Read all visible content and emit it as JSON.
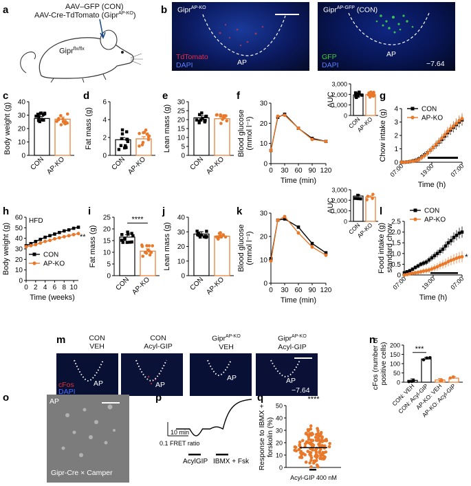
{
  "panel_a": {
    "label": "a",
    "line1": "AAV–GFP (CON)",
    "line2": "AAV-Cre-TdTomato (Gipr",
    "line2_sup": "AP-KO",
    "line2_end": ")",
    "mouse_text": "Gipr",
    "mouse_sup": "flx/flx"
  },
  "panel_b": {
    "label": "b",
    "left_title": "Gipr",
    "left_title_sup": "AP-KO",
    "left_ch1": "TdTomato",
    "left_ch2": "DAPI",
    "left_region": "AP",
    "right_title": "Gipr",
    "right_title_sup": "AP-GFP",
    "right_title_end": " (CON)",
    "right_ch1": "GFP",
    "right_ch2": "DAPI",
    "right_region": "AP",
    "coord": "−7.64"
  },
  "panel_m": {
    "label": "m",
    "cols": [
      {
        "line1": "CON",
        "line2": "VEH",
        "sup": ""
      },
      {
        "line1": "CON",
        "line2": "Acyl-GIP",
        "sup": ""
      },
      {
        "line1": "Gipr",
        "line2": "VEH",
        "sup": "AP-KO"
      },
      {
        "line1": "Gipr",
        "line2": "Acyl-GIP",
        "sup": "AP-KO"
      }
    ],
    "ch1": "cFos",
    "ch2": "DAPI",
    "region": "AP",
    "coord": "−7.64"
  },
  "panel_o": {
    "label": "o",
    "region": "AP",
    "caption": "Gipr-Cre × Camper"
  },
  "colors": {
    "con": "#000000",
    "apko": "#e8782a",
    "tdtomato": "#d0243c",
    "gfp": "#3ccf3c",
    "dapi": "#3a5bd8"
  },
  "chart_data": [
    {
      "id": "c",
      "type": "bar",
      "ylabel": "Body weight (g)",
      "categories": [
        "CON",
        "AP-KO"
      ],
      "values": [
        27.5,
        27
      ],
      "ylim": [
        0,
        40
      ],
      "yticks": [
        0,
        10,
        20,
        30,
        40
      ]
    },
    {
      "id": "d",
      "type": "bar",
      "ylabel": "Fat mass (g)",
      "categories": [
        "CON",
        "AP-KO"
      ],
      "values": [
        1.75,
        1.85
      ],
      "ylim": [
        0,
        6
      ],
      "yticks": [
        0,
        2,
        4,
        6
      ]
    },
    {
      "id": "e",
      "type": "bar",
      "ylabel": "Lean mass (g)",
      "categories": [
        "CON",
        "AP-KO"
      ],
      "values": [
        21,
        20.5
      ],
      "ylim": [
        0,
        30
      ],
      "yticks": [
        0,
        5,
        10,
        15,
        20,
        25,
        30
      ]
    },
    {
      "id": "f",
      "type": "line",
      "ylabel": "Blood glucose",
      "ylabel2": "(mmol l⁻¹)",
      "xlabel": "Time (min)",
      "xlim": [
        0,
        120
      ],
      "ylim": [
        0,
        30
      ],
      "xticks": [
        0,
        30,
        60,
        90,
        120
      ],
      "yticks": [
        0,
        10,
        20,
        30
      ],
      "series": [
        {
          "name": "CON",
          "x": [
            0,
            15,
            30,
            60,
            90,
            120
          ],
          "y": [
            6.5,
            23,
            24.5,
            17.5,
            12.5,
            11
          ]
        },
        {
          "name": "AP-KO",
          "x": [
            0,
            15,
            30,
            60,
            90,
            120
          ],
          "y": [
            6.5,
            23.5,
            24,
            17.5,
            12,
            11
          ]
        }
      ]
    },
    {
      "id": "f-auc",
      "type": "bar",
      "ylabel": "AUC",
      "categories": [
        "CON",
        "AP-KO"
      ],
      "values": [
        1950,
        2000
      ],
      "ylim": [
        0,
        3000
      ],
      "yticks": [
        0,
        1000,
        2000,
        3000
      ],
      "yticklabels": [
        "0",
        "1,000",
        "2,000",
        "3,000"
      ]
    },
    {
      "id": "g",
      "type": "line",
      "ylabel": "Chow intake (g)",
      "xlabel": "Time (h)",
      "ylim": [
        0,
        4
      ],
      "yticks": [
        0,
        1,
        2,
        3,
        4
      ],
      "xticklabels": [
        "07:00",
        "19:00",
        "07:00"
      ],
      "series": [
        {
          "name": "CON",
          "y": [
            0,
            0,
            0.02,
            0.05,
            0.1,
            0.15,
            0.25,
            0.4,
            0.55,
            0.7,
            0.9,
            1.1,
            1.3,
            1.5,
            1.7,
            1.95,
            2.2,
            2.4,
            2.6,
            2.8,
            3.0,
            3.15
          ]
        },
        {
          "name": "AP-KO",
          "y": [
            0,
            0,
            0.02,
            0.05,
            0.08,
            0.12,
            0.2,
            0.35,
            0.5,
            0.68,
            0.9,
            1.1,
            1.35,
            1.55,
            1.8,
            2.05,
            2.3,
            2.5,
            2.7,
            2.9,
            3.1,
            3.25
          ]
        }
      ]
    },
    {
      "id": "h",
      "type": "line",
      "ylabel": "Body weight (g)",
      "xlabel": "Time (weeks)",
      "xlim": [
        0,
        11
      ],
      "ylim": [
        0,
        60
      ],
      "xticks": [
        0,
        2,
        4,
        6,
        8,
        10
      ],
      "yticks": [
        0,
        10,
        20,
        30,
        40,
        50,
        60
      ],
      "annotation": "HFD",
      "significance": "**",
      "series": [
        {
          "name": "CON",
          "x": [
            0,
            1,
            2,
            3,
            4,
            5,
            6,
            7,
            8,
            9,
            10,
            11
          ],
          "y": [
            33,
            35,
            37,
            39,
            41,
            42.5,
            44,
            45.5,
            47,
            48,
            49.5,
            50.5
          ]
        },
        {
          "name": "AP-KO",
          "x": [
            0,
            1,
            2,
            3,
            4,
            5,
            6,
            7,
            8,
            9,
            10,
            11
          ],
          "y": [
            32,
            33,
            34,
            35.5,
            37,
            38,
            39.5,
            40.5,
            41.5,
            42.5,
            43.5,
            44.5
          ]
        }
      ]
    },
    {
      "id": "i",
      "type": "bar",
      "ylabel": "Fat mass (g)",
      "categories": [
        "CON",
        "AP-KO"
      ],
      "values": [
        16.5,
        10.5
      ],
      "ylim": [
        0,
        25
      ],
      "yticks": [
        0,
        5,
        10,
        15,
        20,
        25
      ],
      "significance": "****"
    },
    {
      "id": "j",
      "type": "bar",
      "ylabel": "Lean mass (g)",
      "categories": [
        "CON",
        "AP-KO"
      ],
      "values": [
        28.5,
        27
      ],
      "ylim": [
        0,
        40
      ],
      "yticks": [
        0,
        10,
        20,
        30,
        40
      ]
    },
    {
      "id": "k",
      "type": "line",
      "ylabel": "Blood glucose",
      "ylabel2": "(mmol l⁻¹)",
      "xlabel": "Time (min)",
      "xlim": [
        0,
        120
      ],
      "ylim": [
        0,
        30
      ],
      "xticks": [
        0,
        30,
        60,
        90,
        120
      ],
      "yticks": [
        0,
        10,
        20,
        30
      ],
      "series": [
        {
          "name": "CON",
          "x": [
            0,
            15,
            30,
            60,
            90,
            120
          ],
          "y": [
            10.5,
            27,
            27.5,
            24,
            17,
            13
          ]
        },
        {
          "name": "AP-KO",
          "x": [
            0,
            15,
            30,
            60,
            90,
            120
          ],
          "y": [
            9.5,
            27,
            28.5,
            21.5,
            15.5,
            12
          ]
        }
      ]
    },
    {
      "id": "k-auc",
      "type": "bar",
      "ylabel": "AUC",
      "categories": [
        "CON",
        "AP-KO"
      ],
      "values": [
        2400,
        2300
      ],
      "ylim": [
        0,
        3000
      ],
      "yticks": [
        0,
        1000,
        2000,
        3000
      ],
      "yticklabels": [
        "0",
        "1,000",
        "2,000",
        "3,000"
      ]
    },
    {
      "id": "l",
      "type": "line",
      "ylabel": "Food intake (g)",
      "ylabel2": "standard chow",
      "xlabel": "Time (h)",
      "ylim": [
        0,
        2.5
      ],
      "yticks": [
        0,
        0.5,
        1.0,
        1.5,
        2.0,
        2.5
      ],
      "yticklabels": [
        "0",
        "0.5",
        "1.0",
        "1.5",
        "2.0",
        "2.5"
      ],
      "xticklabels": [
        "07:00",
        "19:00",
        "07:00"
      ],
      "significance": "*",
      "series": [
        {
          "name": "CON",
          "y": [
            0.1,
            0.15,
            0.2,
            0.27,
            0.35,
            0.42,
            0.5,
            0.55,
            0.6,
            0.7,
            0.8,
            0.9,
            1.0,
            1.1,
            1.2,
            1.35,
            1.5,
            1.6,
            1.75,
            1.85,
            1.95,
            2.0
          ]
        },
        {
          "name": "AP-KO",
          "y": [
            0,
            0.02,
            0.05,
            0.08,
            0.1,
            0.12,
            0.15,
            0.18,
            0.2,
            0.23,
            0.28,
            0.33,
            0.38,
            0.45,
            0.5,
            0.55,
            0.62,
            0.68,
            0.73,
            0.78,
            0.82,
            0.85
          ]
        }
      ]
    },
    {
      "id": "n",
      "type": "bar",
      "ylabel": "cFos (number of",
      "ylabel2": "positive cells)",
      "categories": [
        "CON: VEH",
        "CON: Acyl-GIP",
        "AP-KO: VEH",
        "AP-KO: Acyl-GIP"
      ],
      "values": [
        10,
        125,
        12,
        22
      ],
      "ylim": [
        0,
        200
      ],
      "yticks": [
        0,
        50,
        100,
        150,
        200
      ],
      "significance": "***"
    },
    {
      "id": "p",
      "type": "line",
      "scale_y": "0.1 FRET ratio",
      "scale_x": "10 min",
      "annotations": [
        "AcylGIP",
        "IBMX + Fsk"
      ]
    },
    {
      "id": "q",
      "type": "scatter",
      "ylabel": "Response to IBMX +",
      "ylabel2": "forskolin (%)",
      "category": "Acyl-GIP 400 nM",
      "mean": 16,
      "ylim": [
        0,
        50
      ],
      "yticks": [
        0,
        10,
        20,
        30,
        40,
        50
      ],
      "significance": "****"
    }
  ]
}
